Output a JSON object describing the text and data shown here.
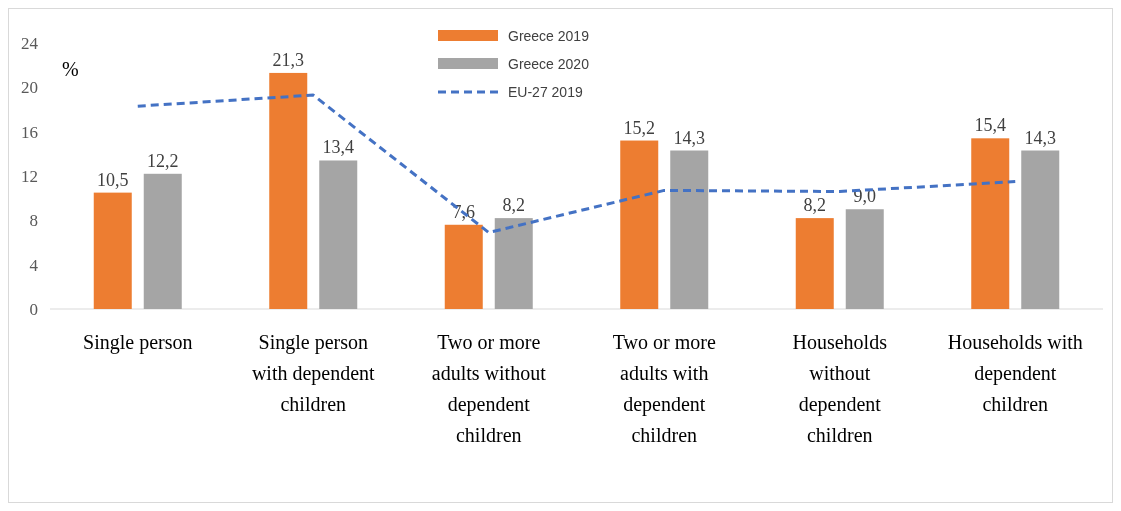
{
  "chart_data": {
    "type": "bar",
    "ylabel": "%",
    "categories": [
      "Single person",
      "Single person with dependent children",
      "Two or more adults without dependent children",
      "Two or more adults with dependent children",
      "Households without dependent children",
      "Households with dependent children"
    ],
    "series": [
      {
        "name": "Greece 2019",
        "color": "#ed7d31",
        "values": [
          10.5,
          21.3,
          7.6,
          15.2,
          8.2,
          15.4
        ],
        "value_labels": [
          "10,5",
          "21,3",
          "7,6",
          "15,2",
          "8,2",
          "15,4"
        ]
      },
      {
        "name": "Greece 2020",
        "color": "#a5a5a5",
        "values": [
          12.2,
          13.4,
          8.2,
          14.3,
          9.0,
          14.3
        ],
        "value_labels": [
          "12,2",
          "13,4",
          "8,2",
          "14,3",
          "9,0",
          "14,3"
        ]
      },
      {
        "name": "EU-27 2019",
        "type": "line",
        "color": "#4472c4",
        "line_style": "dashed",
        "values": [
          18.3,
          19.3,
          6.9,
          10.7,
          10.6,
          11.5
        ]
      }
    ],
    "ylim": [
      0,
      24
    ],
    "yticks": [
      0,
      4,
      8,
      12,
      16,
      20,
      24
    ],
    "legend": "top"
  }
}
